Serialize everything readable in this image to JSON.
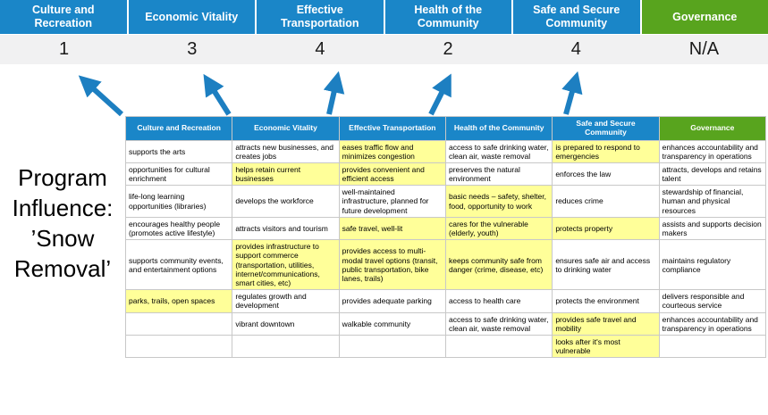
{
  "title": "Program Influence: ’Snow Removal’",
  "colors": {
    "header_blue": "#1A86C8",
    "header_green": "#58A41E",
    "highlight_yellow": "#FFFF99",
    "score_band_gray": "#F1F1F2",
    "arrow_blue": "#1D7FC1"
  },
  "scoreboard": {
    "columns": [
      {
        "label": "Culture and Recreation",
        "score": "1",
        "color": "blue"
      },
      {
        "label": "Economic Vitality",
        "score": "3",
        "color": "blue"
      },
      {
        "label": "Effective Transportation",
        "score": "4",
        "color": "blue"
      },
      {
        "label": "Health of the Community",
        "score": "2",
        "color": "blue"
      },
      {
        "label": "Safe and Secure Community",
        "score": "4",
        "color": "blue"
      },
      {
        "label": "Governance",
        "score": "N/A",
        "color": "green"
      }
    ]
  },
  "matrix": {
    "headers": [
      {
        "label": "Culture and Recreation",
        "color": "blue"
      },
      {
        "label": "Economic Vitality",
        "color": "blue"
      },
      {
        "label": "Effective Transportation",
        "color": "blue"
      },
      {
        "label": "Health of the Community",
        "color": "blue"
      },
      {
        "label": "Safe and Secure Community",
        "color": "blue"
      },
      {
        "label": "Governance",
        "color": "green"
      }
    ],
    "rows": [
      [
        {
          "text": "supports the arts",
          "highlight": false
        },
        {
          "text": "attracts new businesses, and creates jobs",
          "highlight": false
        },
        {
          "text": "eases traffic flow and minimizes congestion",
          "highlight": true
        },
        {
          "text": "access to safe drinking water, clean air, waste removal",
          "highlight": false
        },
        {
          "text": "is prepared to respond to emergencies",
          "highlight": true
        },
        {
          "text": "enhances accountability and transparency in operations",
          "highlight": false
        }
      ],
      [
        {
          "text": "opportunities for cultural enrichment",
          "highlight": false
        },
        {
          "text": "helps retain current businesses",
          "highlight": true
        },
        {
          "text": "provides convenient and efficient access",
          "highlight": true
        },
        {
          "text": "preserves the natural environment",
          "highlight": false
        },
        {
          "text": "enforces the law",
          "highlight": false
        },
        {
          "text": "attracts, develops and retains talent",
          "highlight": false
        }
      ],
      [
        {
          "text": "life-long learning opportunities (libraries)",
          "highlight": false
        },
        {
          "text": "develops the workforce",
          "highlight": false
        },
        {
          "text": "well-maintained infrastructure, planned for future development",
          "highlight": false
        },
        {
          "text": "basic needs – safety, shelter, food, opportunity to work",
          "highlight": true
        },
        {
          "text": "reduces crime",
          "highlight": false
        },
        {
          "text": "stewardship of financial, human and physical resources",
          "highlight": false
        }
      ],
      [
        {
          "text": "encourages healthy people (promotes active lifestyle)",
          "highlight": false
        },
        {
          "text": "attracts visitors and tourism",
          "highlight": false
        },
        {
          "text": "safe travel, well-lit",
          "highlight": true
        },
        {
          "text": "cares for the vulnerable (elderly, youth)",
          "highlight": true
        },
        {
          "text": "protects property",
          "highlight": true
        },
        {
          "text": "assists and supports decision makers",
          "highlight": false
        }
      ],
      [
        {
          "text": "supports community events, and entertainment options",
          "highlight": false
        },
        {
          "text": "provides infrastructure to support commerce (transportation, utilities, internet/communications, smart cities, etc)",
          "highlight": true
        },
        {
          "text": "provides access to multi-modal travel options (transit, public transportation, bike lanes, trails)",
          "highlight": true
        },
        {
          "text": "keeps community safe from danger (crime, disease, etc)",
          "highlight": true
        },
        {
          "text": "ensures safe air and access to drinking water",
          "highlight": false
        },
        {
          "text": "maintains regulatory compliance",
          "highlight": false
        }
      ],
      [
        {
          "text": "parks, trails, open spaces",
          "highlight": true
        },
        {
          "text": "regulates growth and development",
          "highlight": false
        },
        {
          "text": "provides adequate parking",
          "highlight": false
        },
        {
          "text": "access to health care",
          "highlight": false
        },
        {
          "text": "protects the environment",
          "highlight": false
        },
        {
          "text": "delivers responsible and courteous service",
          "highlight": false
        }
      ],
      [
        {
          "text": "",
          "highlight": false
        },
        {
          "text": "vibrant downtown",
          "highlight": false
        },
        {
          "text": "walkable community",
          "highlight": false
        },
        {
          "text": "access to safe drinking water, clean air, waste removal",
          "highlight": false
        },
        {
          "text": "provides safe travel and mobility",
          "highlight": true
        },
        {
          "text": "enhances accountability and transparency in operations",
          "highlight": false
        }
      ],
      [
        {
          "text": "",
          "highlight": false
        },
        {
          "text": "",
          "highlight": false
        },
        {
          "text": "",
          "highlight": false
        },
        {
          "text": "",
          "highlight": false
        },
        {
          "text": "looks after it's most vulnerable",
          "highlight": true
        },
        {
          "text": "",
          "highlight": false
        }
      ]
    ]
  }
}
